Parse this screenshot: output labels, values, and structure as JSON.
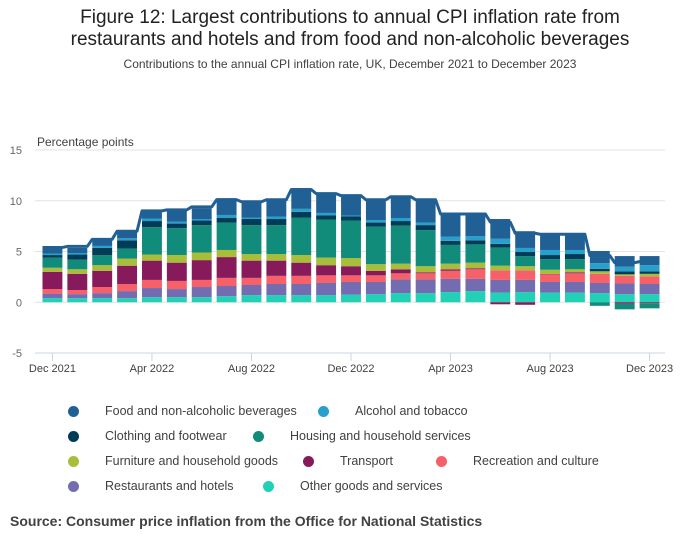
{
  "header": {
    "title_line1": "Figure 12: Largest contributions to annual CPI inflation rate from",
    "title_line2": "restaurants and hotels and from food and non-alcoholic beverages",
    "subtitle": "Contributions to the annual CPI inflation rate, UK, December 2021 to December 2023"
  },
  "source": "Source: Consumer price inflation from the Office for National Statistics",
  "chart_data": {
    "type": "bar",
    "stacked": true,
    "title": "Figure 12: Largest contributions to annual CPI inflation rate from restaurants and hotels and from food and non-alcoholic beverages",
    "subtitle": "Contributions to the annual CPI inflation rate, UK, December 2021 to December 2023",
    "ylabel": "Percentage points",
    "xlabel": "",
    "ylim": [
      -5,
      15
    ],
    "yticks": [
      -5,
      0,
      5,
      10,
      15
    ],
    "grid": true,
    "legend_position": "bottom",
    "categories": [
      "Dec 2021",
      "Jan 2022",
      "Feb 2022",
      "Mar 2022",
      "Apr 2022",
      "May 2022",
      "Jun 2022",
      "Jul 2022",
      "Aug 2022",
      "Sep 2022",
      "Oct 2022",
      "Nov 2022",
      "Dec 2022",
      "Jan 2023",
      "Feb 2023",
      "Mar 2023",
      "Apr 2023",
      "May 2023",
      "Jun 2023",
      "Jul 2023",
      "Aug 2023",
      "Sep 2023",
      "Oct 2023",
      "Nov 2023",
      "Dec 2023"
    ],
    "xtick_labels": [
      "Dec 2021",
      "Apr 2022",
      "Aug 2022",
      "Dec 2022",
      "Apr 2023",
      "Aug 2023",
      "Dec 2023"
    ],
    "xtick_indices": [
      0,
      4,
      8,
      12,
      16,
      20,
      24
    ],
    "series": [
      {
        "name": "Other goods and services",
        "color": "#22d0b6",
        "values": [
          0.4,
          0.4,
          0.4,
          0.4,
          0.5,
          0.5,
          0.5,
          0.6,
          0.7,
          0.7,
          0.7,
          0.7,
          0.75,
          0.8,
          0.9,
          0.9,
          1.0,
          1.1,
          0.95,
          1.0,
          0.95,
          0.95,
          0.9,
          0.8,
          0.8
        ]
      },
      {
        "name": "Restaurants and hotels",
        "color": "#746cb1",
        "values": [
          0.45,
          0.4,
          0.5,
          0.7,
          0.9,
          0.8,
          1.0,
          1.0,
          1.0,
          1.1,
          1.1,
          1.2,
          1.25,
          1.2,
          1.35,
          1.35,
          1.3,
          1.2,
          1.25,
          1.2,
          1.05,
          1.05,
          1.0,
          1.05,
          1.0
        ]
      },
      {
        "name": "Recreation and culture",
        "color": "#f66068",
        "values": [
          0.45,
          0.4,
          0.6,
          0.7,
          0.8,
          0.8,
          0.7,
          0.8,
          0.7,
          0.8,
          0.8,
          0.75,
          0.65,
          0.65,
          0.6,
          0.6,
          0.8,
          0.95,
          0.95,
          0.95,
          0.75,
          0.85,
          0.9,
          0.75,
          0.75
        ]
      },
      {
        "name": "Transport",
        "color": "#871a5b",
        "values": [
          1.7,
          1.6,
          1.6,
          1.8,
          1.9,
          1.8,
          1.95,
          2.05,
          1.7,
          1.5,
          1.3,
          1.0,
          0.9,
          0.45,
          0.4,
          0.1,
          0.15,
          0.1,
          -0.2,
          -0.25,
          0.05,
          0.1,
          0.0,
          -0.15,
          -0.1
        ]
      },
      {
        "name": "Furniture and household goods",
        "color": "#a8bd3a",
        "values": [
          0.4,
          0.45,
          0.55,
          0.7,
          0.6,
          0.75,
          0.75,
          0.7,
          0.65,
          0.65,
          0.75,
          0.75,
          0.8,
          0.65,
          0.55,
          0.6,
          0.55,
          0.55,
          0.45,
          0.4,
          0.4,
          0.3,
          0.25,
          0.15,
          0.25
        ]
      },
      {
        "name": "Housing and household services",
        "color": "#118c7b",
        "values": [
          1.0,
          0.95,
          1.0,
          1.0,
          2.7,
          2.65,
          2.7,
          2.7,
          2.85,
          2.85,
          3.7,
          3.75,
          3.7,
          3.7,
          3.75,
          3.55,
          1.85,
          1.8,
          1.8,
          1.0,
          1.05,
          1.0,
          -0.35,
          -0.55,
          -0.5
        ]
      },
      {
        "name": "Clothing and footwear",
        "color": "#003c57",
        "values": [
          0.25,
          0.5,
          0.7,
          0.8,
          0.6,
          0.45,
          0.45,
          0.45,
          0.6,
          0.6,
          0.55,
          0.4,
          0.4,
          0.4,
          0.45,
          0.5,
          0.4,
          0.4,
          0.35,
          0.4,
          0.4,
          0.5,
          0.25,
          0.3,
          0.25
        ]
      },
      {
        "name": "Alcohol and tobacco",
        "color": "#27a0cc",
        "values": [
          0.15,
          0.15,
          0.2,
          0.2,
          0.25,
          0.2,
          0.15,
          0.3,
          0.15,
          0.25,
          0.3,
          0.25,
          0.1,
          0.25,
          0.3,
          0.25,
          0.4,
          0.4,
          0.5,
          0.4,
          0.5,
          0.4,
          0.55,
          0.45,
          0.6
        ]
      },
      {
        "name": "Food and non-alcoholic beverages",
        "color": "#206095",
        "values": [
          0.6,
          0.5,
          0.65,
          0.7,
          0.75,
          1.05,
          1.05,
          1.65,
          1.5,
          1.55,
          2.05,
          1.8,
          2.05,
          1.9,
          2.0,
          2.15,
          2.15,
          2.15,
          1.95,
          1.65,
          1.45,
          1.65,
          1.2,
          1.05,
          0.9
        ]
      }
    ],
    "line": {
      "name": "CPI annual rate",
      "color": "#206095",
      "values": [
        5.4,
        5.5,
        6.2,
        7.0,
        9.0,
        9.1,
        9.4,
        10.1,
        9.9,
        10.1,
        11.1,
        10.7,
        10.5,
        10.1,
        10.4,
        10.1,
        8.7,
        8.7,
        7.9,
        6.8,
        6.7,
        6.7,
        4.6,
        3.9,
        4.0
      ]
    }
  },
  "legend": {
    "rows": [
      [
        {
          "label": "Food and non-alcoholic beverages",
          "color": "#206095"
        },
        {
          "label": "Alcohol and tobacco",
          "color": "#27a0cc"
        }
      ],
      [
        {
          "label": "Clothing and footwear",
          "color": "#003c57"
        },
        {
          "label": "Housing and household services",
          "color": "#118c7b"
        }
      ],
      [
        {
          "label": "Furniture and household goods",
          "color": "#a8bd3a"
        },
        {
          "label": "Transport",
          "color": "#871a5b"
        },
        {
          "label": "Recreation and culture",
          "color": "#f66068"
        }
      ],
      [
        {
          "label": "Restaurants and hotels",
          "color": "#746cb1"
        },
        {
          "label": "Other goods and services",
          "color": "#22d0b6"
        }
      ]
    ]
  }
}
